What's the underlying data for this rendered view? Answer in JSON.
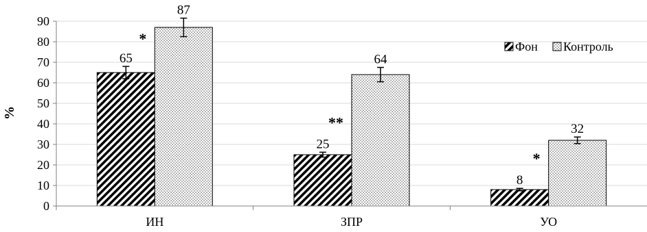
{
  "chart_data": {
    "type": "bar",
    "categories": [
      "ИН",
      "ЗПР",
      "УО"
    ],
    "series": [
      {
        "name": "Фон",
        "values": [
          65,
          25,
          8
        ],
        "errors": [
          3,
          1.2,
          0.6
        ],
        "pattern": "hatch",
        "labels": [
          "65",
          "25",
          "8"
        ]
      },
      {
        "name": "Контроль",
        "values": [
          87,
          64,
          32
        ],
        "errors": [
          4.5,
          3.5,
          1.6
        ],
        "pattern": "dots",
        "labels": [
          "87",
          "64",
          "32"
        ]
      }
    ],
    "significance": [
      "*",
      "**",
      "*"
    ],
    "ylabel": "%",
    "ylim": [
      0,
      90
    ],
    "yticks": [
      "0",
      "10",
      "20",
      "30",
      "40",
      "50",
      "60",
      "70",
      "80",
      "90"
    ],
    "grid": true,
    "legend_position": "top-right"
  }
}
